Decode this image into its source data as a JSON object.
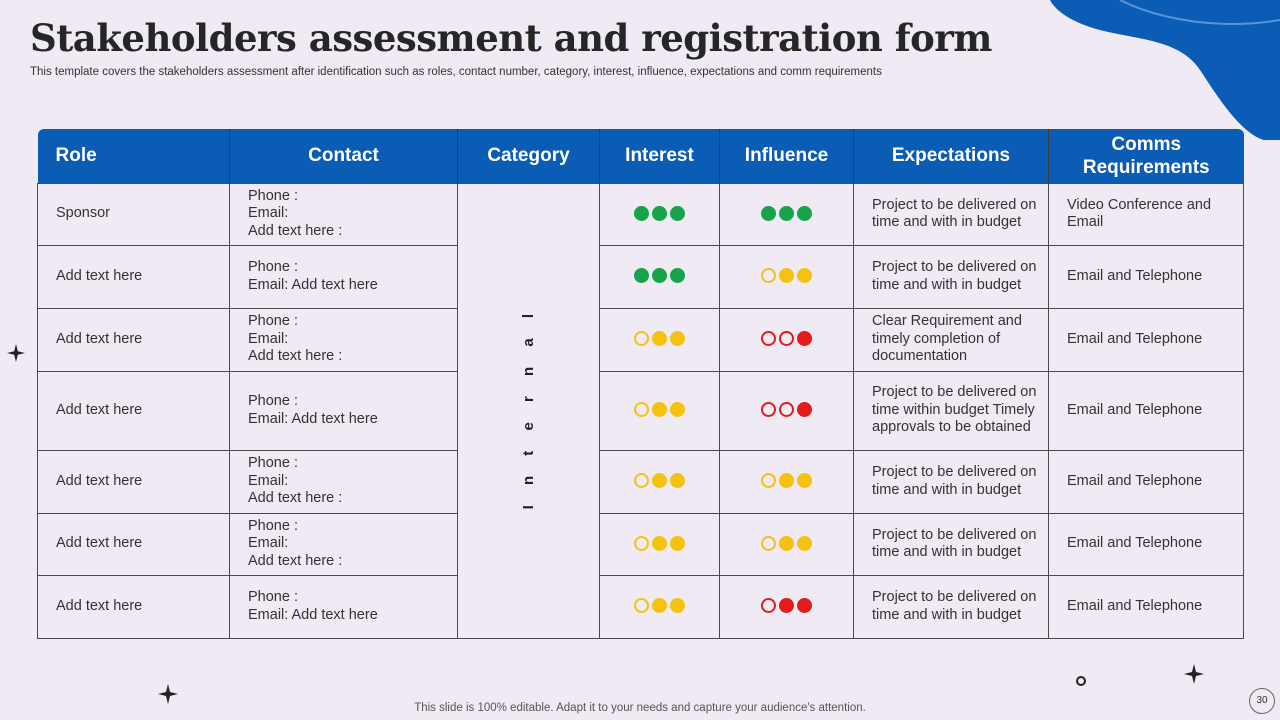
{
  "title": "Stakeholders assessment and registration form",
  "subtitle": "This template covers the stakeholders assessment after identification such as roles, contact number, category, interest, influence, expectations and comm requirements",
  "table": {
    "headers": [
      "Role",
      "Contact",
      "Category",
      "Interest",
      "Influence",
      "Expectations",
      "Comms Requirements"
    ],
    "category_value": "I n t e r n a l",
    "rows": [
      {
        "role": "Sponsor",
        "contact": [
          "Phone :",
          "Email:",
          "Add text here :"
        ],
        "interest": [
          "green-f",
          "green-f",
          "green-f"
        ],
        "influence": [
          "green-f",
          "green-f",
          "green-f"
        ],
        "expectations": "Project to be delivered on time and with in budget",
        "comms": "Video  Conference and Email"
      },
      {
        "role": "Add text here",
        "contact": [
          "Phone :",
          "Email: Add text here"
        ],
        "interest": [
          "green-f",
          "green-f",
          "green-f"
        ],
        "influence": [
          "yellow-o",
          "yellow-f",
          "yellow-f"
        ],
        "expectations": "Project to be delivered on time and with in budget",
        "comms": "Email and Telephone"
      },
      {
        "role": "Add text here",
        "contact": [
          "Phone :",
          "Email:",
          "Add text here :"
        ],
        "interest": [
          "yellow-o",
          "yellow-f",
          "yellow-f"
        ],
        "influence": [
          "red-o",
          "red-o",
          "red-f"
        ],
        "expectations": "Clear Requirement and timely completion of documentation",
        "comms": "Email and Telephone"
      },
      {
        "role": "Add text here",
        "contact": [
          "Phone :",
          "Email: Add text here"
        ],
        "interest": [
          "yellow-o",
          "yellow-f",
          "yellow-f"
        ],
        "influence": [
          "red-o",
          "red-o",
          "red-f"
        ],
        "expectations": "Project to be delivered on time within budget Timely approvals to be obtained",
        "comms": "Email and Telephone"
      },
      {
        "role": "Add text here",
        "contact": [
          "Phone :",
          "Email:",
          "Add text here :"
        ],
        "interest": [
          "yellow-o",
          "yellow-f",
          "yellow-f"
        ],
        "influence": [
          "yellow-o",
          "yellow-f",
          "yellow-f"
        ],
        "expectations": "Project to be delivered on time and with in budget",
        "comms": "Email and Telephone"
      },
      {
        "role": "Add text here",
        "contact": [
          "Phone :",
          "Email:",
          "Add text here :"
        ],
        "interest": [
          "yellow-o",
          "yellow-f",
          "yellow-f"
        ],
        "influence": [
          "yellow-o",
          "yellow-f",
          "yellow-f"
        ],
        "expectations": "Project to be delivered on time and with in budget",
        "comms": "Email and Telephone"
      },
      {
        "role": "Add text here",
        "contact": [
          "Phone :",
          "Email: Add text here"
        ],
        "interest": [
          "yellow-o",
          "yellow-f",
          "yellow-f"
        ],
        "influence": [
          "red-o",
          "red-f",
          "red-f"
        ],
        "expectations": "Project to be delivered on time and with in budget",
        "comms": "Email and Telephone"
      }
    ]
  },
  "footer": "This slide is 100% editable. Adapt it to your needs and capture your audience's attention.",
  "page_number": "30",
  "colors": {
    "header_blue": "#0b5cb4",
    "green": "#17a34a",
    "yellow": "#f5c211",
    "red": "#e21c1c",
    "background": "#efeaf3"
  }
}
